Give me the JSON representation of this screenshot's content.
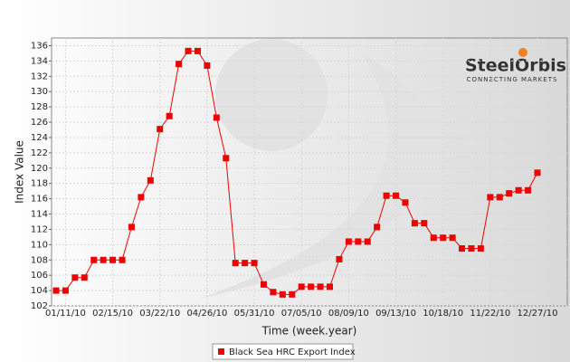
{
  "chart_data": {
    "type": "line",
    "x_label": "Time (week.year)",
    "y_label": "Index Value",
    "logo": {
      "name": "SteelOrbis",
      "tagline": "CONNECTING MARKETS"
    },
    "categories": [
      null,
      "01/11/10",
      null,
      null,
      null,
      null,
      "02/15/10",
      null,
      null,
      null,
      null,
      "03/22/10",
      null,
      null,
      null,
      null,
      "04/26/10",
      null,
      null,
      null,
      null,
      "05/31/10",
      null,
      null,
      null,
      null,
      "07/05/10",
      null,
      null,
      null,
      null,
      "08/09/10",
      null,
      null,
      null,
      null,
      "09/13/10",
      null,
      null,
      null,
      null,
      "10/18/10",
      null,
      null,
      null,
      null,
      "11/22/10",
      null,
      null,
      null,
      null,
      "12/27/10"
    ],
    "series": [
      {
        "name": "Black Sea HRC Export Index",
        "color": "#ee0000",
        "values": [
          104,
          104,
          105.7,
          105.7,
          108,
          108,
          108,
          108,
          112.3,
          116.2,
          118.4,
          125.1,
          126.8,
          133.6,
          135.3,
          135.3,
          133.4,
          126.6,
          121.3,
          107.6,
          107.6,
          107.6,
          104.8,
          103.8,
          103.5,
          103.5,
          104.5,
          104.5,
          104.5,
          104.5,
          108.1,
          110.4,
          110.4,
          110.4,
          112.3,
          116.4,
          116.4,
          115.5,
          112.8,
          112.8,
          110.9,
          110.9,
          110.9,
          109.5,
          109.5,
          109.5,
          116.2,
          116.2,
          116.7,
          117.1,
          117.1,
          119.4
        ]
      }
    ],
    "ylim": [
      102,
      137
    ],
    "yticks": [
      102,
      104,
      106,
      108,
      110,
      112,
      114,
      116,
      118,
      120,
      122,
      124,
      126,
      128,
      130,
      132,
      134,
      136
    ],
    "grid": true
  }
}
